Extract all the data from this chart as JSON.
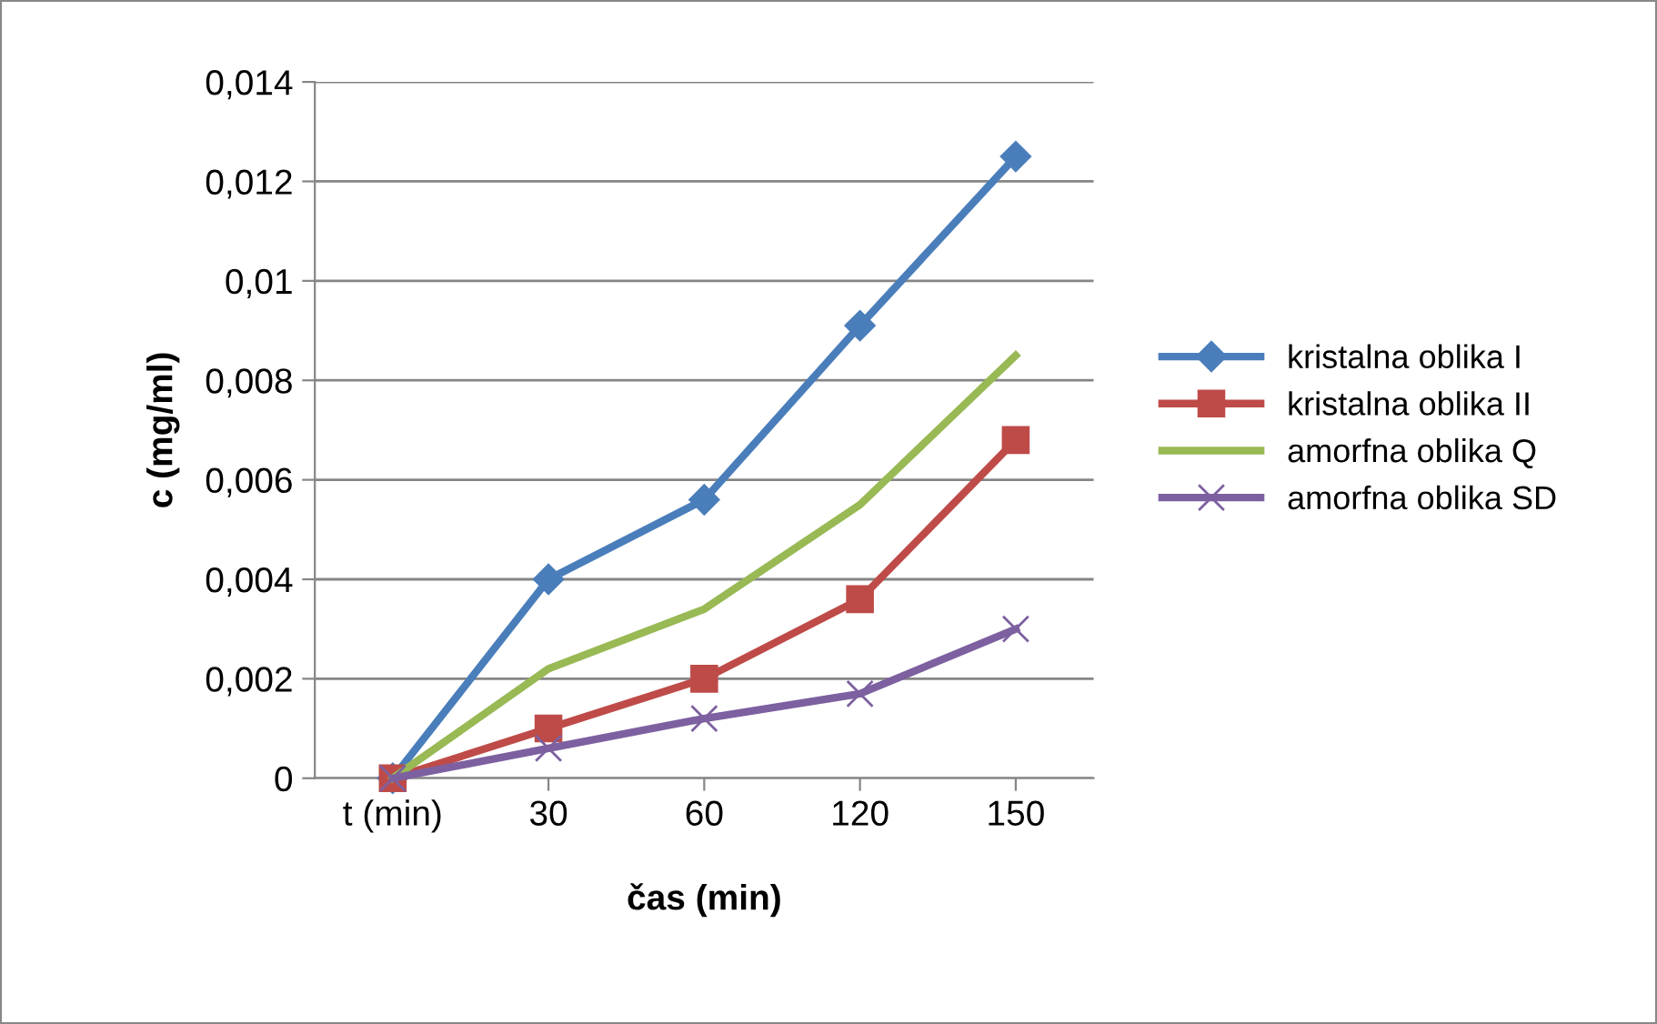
{
  "chart_data": {
    "type": "line",
    "xlabel": "čas (min)",
    "ylabel": "c (mg/ml)",
    "categories": [
      "t (min)",
      "30",
      "60",
      "120",
      "150"
    ],
    "series": [
      {
        "name": "kristalna oblika I",
        "color": "#4a7ebb",
        "marker": "diamond",
        "values": [
          0,
          0.004,
          0.0056,
          0.0091,
          0.0125
        ]
      },
      {
        "name": "kristalna oblika II",
        "color": "#be4b48",
        "marker": "square",
        "values": [
          0,
          0.001,
          0.002,
          0.0036,
          0.0068
        ]
      },
      {
        "name": "amorfna oblika Q",
        "color": "#98b954",
        "marker": "none",
        "values": [
          0,
          0.0022,
          0.0034,
          0.0055,
          0.0085
        ]
      },
      {
        "name": "amorfna oblika SD",
        "color": "#7d60a0",
        "marker": "cross",
        "values": [
          0,
          0.0006,
          0.0012,
          0.0017,
          0.003
        ]
      }
    ],
    "ylim": [
      0,
      0.014
    ],
    "yticks": [
      0,
      {
        "value": 0.002,
        "label": "0,002"
      },
      {
        "value": 0.004,
        "label": "0,004"
      },
      {
        "value": 0.006,
        "label": "0,006"
      },
      {
        "value": 0.008,
        "label": "0,008"
      },
      {
        "value": 0.01,
        "label": "0,01"
      },
      {
        "value": 0.012,
        "label": "0,012"
      },
      {
        "value": 0.014,
        "label": "0,014"
      }
    ],
    "grid": "y",
    "legend": "right",
    "line_style": "solid"
  }
}
